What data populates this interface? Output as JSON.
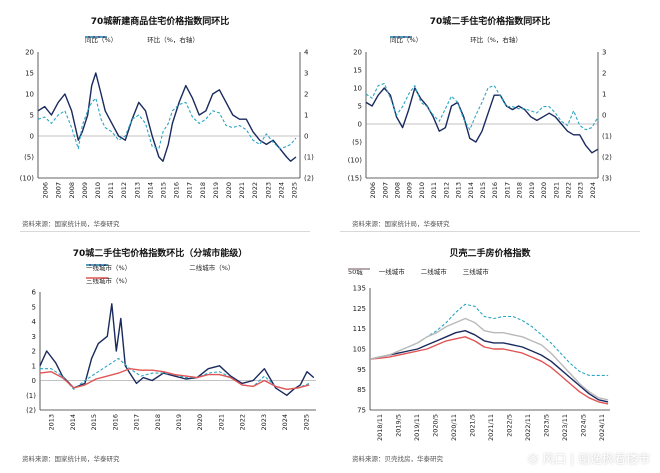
{
  "colors": {
    "navy": "#1a2a5e",
    "teal": "#2aa5c4",
    "red": "#e05555",
    "grey": "#9aa1a8",
    "zero": "#7a7a7a"
  },
  "chart_data": [
    {
      "type": "line",
      "title": "70城新建商品住宅价格指数同环比",
      "source": "资料来源：国家统计局，华泰研究",
      "x_labels": [
        "2006",
        "2007",
        "2008",
        "2009",
        "2010",
        "2011",
        "2012",
        "2013",
        "2014",
        "2015",
        "2016",
        "2017",
        "2018",
        "2019",
        "2020",
        "2021",
        "2022",
        "2023",
        "2024",
        "2025"
      ],
      "x_range": [
        2006,
        2025.5
      ],
      "y_left": {
        "range": [
          -10,
          20
        ],
        "ticks": [
          "20",
          "15",
          "10",
          "5",
          "0",
          "(5)",
          "(10)"
        ]
      },
      "y_right": {
        "range": [
          -2,
          4
        ],
        "ticks": [
          "4",
          "3",
          "2",
          "1",
          "0",
          "(1)",
          "(2)"
        ]
      },
      "series": [
        {
          "name": "同比（%）",
          "axis": "left",
          "style": "solid",
          "color": "#1a2a5e",
          "x": [
            2006,
            2006.5,
            2007,
            2007.5,
            2008,
            2008.5,
            2009,
            2009.3,
            2009.7,
            2010,
            2010.3,
            2010.7,
            2011,
            2011.5,
            2012,
            2012.5,
            2013,
            2013.5,
            2014,
            2014.5,
            2015,
            2015.3,
            2015.7,
            2016,
            2016.5,
            2017,
            2017.5,
            2018,
            2018.5,
            2019,
            2019.5,
            2020,
            2020.5,
            2021,
            2021.5,
            2022,
            2022.5,
            2023,
            2023.5,
            2024,
            2024.5,
            2024.8,
            2025.2
          ],
          "y": [
            6,
            7,
            5,
            8,
            10,
            6,
            -1,
            1,
            5,
            12,
            15,
            10,
            6,
            3,
            0,
            -1,
            4,
            8,
            6,
            0,
            -5,
            -6,
            -2,
            3,
            8,
            12,
            9,
            5,
            6,
            10,
            11,
            8,
            5,
            4,
            4,
            1,
            -1,
            -2,
            -1,
            -3,
            -5,
            -6,
            -5
          ]
        },
        {
          "name": "环比（%，右轴）",
          "axis": "right",
          "style": "dashed",
          "color": "#2aa5c4",
          "x": [
            2006,
            2006.5,
            2007,
            2007.5,
            2008,
            2008.5,
            2009,
            2009.3,
            2009.7,
            2010,
            2010.3,
            2010.7,
            2011,
            2011.5,
            2012,
            2012.5,
            2013,
            2013.5,
            2014,
            2014.5,
            2015,
            2015.3,
            2015.7,
            2016,
            2016.5,
            2017,
            2017.5,
            2018,
            2018.5,
            2019,
            2019.5,
            2020,
            2020.5,
            2021,
            2021.5,
            2022,
            2022.5,
            2023,
            2023.5,
            2024,
            2024.5,
            2024.8,
            2025.2
          ],
          "y": [
            0.8,
            0.9,
            0.6,
            1.0,
            1.2,
            0.4,
            -0.6,
            0.5,
            1.2,
            1.6,
            1.8,
            0.8,
            0.4,
            0.2,
            -0.2,
            0.0,
            0.8,
            1.0,
            0.6,
            -0.5,
            -0.6,
            0.2,
            0.6,
            1.2,
            1.5,
            1.6,
            0.9,
            0.6,
            0.8,
            1.2,
            1.1,
            0.5,
            0.4,
            0.5,
            0.3,
            -0.2,
            -0.4,
            0.1,
            -0.3,
            -0.6,
            -0.5,
            -0.4,
            -0.1
          ]
        }
      ]
    },
    {
      "type": "line",
      "title": "70城二手住宅价格指数同环比",
      "source": "资料来源：国家统计局，华泰研究",
      "x_labels": [
        "2006",
        "2007",
        "2008",
        "2009",
        "2010",
        "2011",
        "2012",
        "2013",
        "2014",
        "2015",
        "2016",
        "2017",
        "2018",
        "2019",
        "2020",
        "2021",
        "2022",
        "2023",
        "2024"
      ],
      "x_range": [
        2006,
        2025
      ],
      "y_left": {
        "range": [
          -15,
          20
        ],
        "ticks": [
          "20",
          "15",
          "10",
          "5",
          "0",
          "(5)",
          "(10)",
          "(15)"
        ]
      },
      "y_right": {
        "range": [
          -3,
          3
        ],
        "ticks": [
          "3",
          "2",
          "1",
          "0",
          "(1)",
          "(2)",
          "(3)"
        ]
      },
      "series": [
        {
          "name": "同比（%）",
          "axis": "left",
          "style": "solid",
          "color": "#1a2a5e",
          "x": [
            2006,
            2006.5,
            2007,
            2007.5,
            2008,
            2008.5,
            2009,
            2009.5,
            2010,
            2010.5,
            2011,
            2011.5,
            2012,
            2012.5,
            2013,
            2013.5,
            2014,
            2014.5,
            2015,
            2015.5,
            2016,
            2016.5,
            2017,
            2017.5,
            2018,
            2018.5,
            2019,
            2019.5,
            2020,
            2020.5,
            2021,
            2021.5,
            2022,
            2022.5,
            2023,
            2023.5,
            2024,
            2024.5,
            2025
          ],
          "y": [
            6,
            5,
            8,
            10,
            8,
            2,
            -1,
            4,
            10,
            7,
            5,
            2,
            -2,
            -1,
            5,
            6,
            2,
            -4,
            -5,
            -2,
            3,
            8,
            8,
            5,
            4,
            5,
            4,
            2,
            1,
            2,
            3,
            2,
            0,
            -2,
            -3,
            -3,
            -6,
            -8,
            -7
          ]
        },
        {
          "name": "环比（%，右轴）",
          "axis": "right",
          "style": "dashed",
          "color": "#2aa5c4",
          "x": [
            2006,
            2006.5,
            2007,
            2007.5,
            2008,
            2008.5,
            2009,
            2009.5,
            2010,
            2010.5,
            2011,
            2011.5,
            2012,
            2012.5,
            2013,
            2013.5,
            2014,
            2014.5,
            2015,
            2015.5,
            2016,
            2016.5,
            2017,
            2017.5,
            2018,
            2018.5,
            2019,
            2019.5,
            2020,
            2020.5,
            2021,
            2021.5,
            2022,
            2022.5,
            2023,
            2023.5,
            2024,
            2024.5,
            2025
          ],
          "y": [
            1.0,
            0.8,
            1.4,
            1.5,
            0.8,
            0.0,
            0.4,
            1.0,
            1.4,
            0.6,
            0.4,
            0.0,
            -0.3,
            0.3,
            0.9,
            0.6,
            -0.2,
            -0.7,
            0.0,
            0.6,
            1.3,
            1.4,
            0.9,
            0.4,
            0.4,
            0.3,
            0.3,
            0.2,
            0.1,
            0.4,
            0.4,
            0.1,
            -0.3,
            -0.5,
            0.2,
            -0.5,
            -0.7,
            -0.6,
            -0.1
          ]
        }
      ]
    },
    {
      "type": "line",
      "title": "70城二手住宅价格指数环比（分城市能级）",
      "source": "资料来源：国家统计局，华泰研究",
      "x_labels": [
        "2013",
        "2014",
        "2015",
        "2016",
        "2017",
        "2018",
        "2019",
        "2020",
        "2021",
        "2022",
        "2023",
        "2024",
        "2025"
      ],
      "x_range": [
        2013,
        2025.3
      ],
      "y_left": {
        "range": [
          -2,
          6
        ],
        "ticks": [
          "6",
          "5",
          "4",
          "3",
          "2",
          "1",
          "0",
          "(1)",
          "(2)"
        ]
      },
      "series": [
        {
          "name": "一线城市（%）",
          "axis": "left",
          "style": "solid",
          "color": "#1a2a5e",
          "x": [
            2013,
            2013.3,
            2013.7,
            2014,
            2014.5,
            2015,
            2015.3,
            2015.6,
            2016,
            2016.2,
            2016.4,
            2016.6,
            2016.8,
            2017,
            2017.3,
            2017.6,
            2018,
            2018.5,
            2019,
            2019.5,
            2020,
            2020.5,
            2021,
            2021.5,
            2022,
            2022.5,
            2023,
            2023.5,
            2024,
            2024.3,
            2024.6,
            2024.9,
            2025.2
          ],
          "y": [
            1.0,
            2.0,
            1.2,
            0.3,
            -0.5,
            -0.2,
            1.5,
            2.5,
            3.0,
            5.2,
            2.0,
            4.2,
            1.0,
            0.5,
            -0.2,
            0.2,
            0.0,
            0.5,
            0.3,
            0.1,
            0.2,
            0.8,
            1.0,
            0.3,
            -0.2,
            0.0,
            0.8,
            -0.5,
            -1.0,
            -0.6,
            -0.3,
            0.6,
            0.2
          ]
        },
        {
          "name": "二线城市（%）",
          "axis": "left",
          "style": "dashed",
          "color": "#2aa5c4",
          "x": [
            2013,
            2013.5,
            2014,
            2014.5,
            2015,
            2015.5,
            2016,
            2016.5,
            2017,
            2017.5,
            2018,
            2018.5,
            2019,
            2019.5,
            2020,
            2020.5,
            2021,
            2021.5,
            2022,
            2022.5,
            2023,
            2023.5,
            2024,
            2024.5,
            2025
          ],
          "y": [
            0.8,
            0.8,
            0.3,
            -0.6,
            0.0,
            0.5,
            1.0,
            1.5,
            0.8,
            0.3,
            0.5,
            0.5,
            0.4,
            0.2,
            0.2,
            0.5,
            0.6,
            0.2,
            -0.3,
            -0.4,
            0.3,
            -0.4,
            -0.6,
            -0.5,
            -0.2
          ]
        },
        {
          "name": "三线城市（%）",
          "axis": "left",
          "style": "solid",
          "color": "#e05555",
          "x": [
            2013,
            2013.5,
            2014,
            2014.5,
            2015,
            2015.5,
            2016,
            2016.5,
            2017,
            2017.5,
            2018,
            2018.5,
            2019,
            2019.5,
            2020,
            2020.5,
            2021,
            2021.5,
            2022,
            2022.5,
            2023,
            2023.5,
            2024,
            2024.5,
            2025
          ],
          "y": [
            0.5,
            0.6,
            0.2,
            -0.5,
            -0.3,
            0.1,
            0.3,
            0.5,
            0.8,
            0.7,
            0.7,
            0.6,
            0.4,
            0.3,
            0.2,
            0.4,
            0.4,
            0.2,
            -0.3,
            -0.4,
            0.0,
            -0.4,
            -0.6,
            -0.5,
            -0.3
          ]
        }
      ]
    },
    {
      "type": "line",
      "title": "贝壳二手房价格指数",
      "source": "资料来源：贝壳找房，华泰研究",
      "x_labels": [
        "2018/11",
        "2019/5",
        "2019/11",
        "2020/5",
        "2020/11",
        "2021/5",
        "2021/11",
        "2022/5",
        "2022/11",
        "2023/5",
        "2023/11",
        "2024/5",
        "2024/11"
      ],
      "x_range": [
        0,
        12.6
      ],
      "y_left": {
        "range": [
          75,
          135
        ],
        "ticks": [
          "135",
          "125",
          "115",
          "105",
          "95",
          "85",
          "75"
        ]
      },
      "series": [
        {
          "name": "50城",
          "style": "solid",
          "color": "#1a2a5e",
          "x": [
            0,
            0.5,
            1,
            1.5,
            2,
            2.5,
            3,
            3.5,
            4,
            4.5,
            5,
            5.5,
            6,
            6.5,
            7,
            7.5,
            8,
            8.5,
            9,
            9.5,
            10,
            10.5,
            11,
            11.5,
            12,
            12.5
          ],
          "y": [
            100,
            101,
            102,
            103,
            104,
            105,
            107,
            109,
            111,
            113,
            114,
            112,
            109,
            108,
            108,
            107,
            106,
            104,
            102,
            99,
            95,
            91,
            87,
            83,
            80,
            79
          ]
        },
        {
          "name": "一线城市",
          "style": "dashed",
          "color": "#2aa5c4",
          "x": [
            0,
            0.5,
            1,
            1.5,
            2,
            2.5,
            3,
            3.5,
            4,
            4.5,
            5,
            5.5,
            6,
            6.5,
            7,
            7.5,
            8,
            8.5,
            9,
            9.5,
            10,
            10.5,
            11,
            11.5,
            12,
            12.5
          ],
          "y": [
            100,
            101,
            102,
            104,
            106,
            108,
            111,
            114,
            118,
            123,
            127,
            126,
            121,
            120,
            121,
            121,
            119,
            116,
            112,
            108,
            103,
            98,
            94,
            92,
            92,
            92
          ]
        },
        {
          "name": "二线城市",
          "style": "solid",
          "color": "#e05555",
          "x": [
            0,
            0.5,
            1,
            1.5,
            2,
            2.5,
            3,
            3.5,
            4,
            4.5,
            5,
            5.5,
            6,
            6.5,
            7,
            7.5,
            8,
            8.5,
            9,
            9.5,
            10,
            10.5,
            11,
            11.5,
            12,
            12.5
          ],
          "y": [
            100,
            100.5,
            101,
            102,
            103,
            104,
            105,
            107,
            109,
            110,
            111,
            109,
            106,
            105,
            105,
            104,
            103,
            101,
            99,
            96,
            92,
            88,
            84,
            81,
            79,
            78
          ]
        },
        {
          "name": "三线城市",
          "style": "solid",
          "color": "#b9b9b9",
          "x": [
            0,
            0.5,
            1,
            1.5,
            2,
            2.5,
            3,
            3.5,
            4,
            4.5,
            5,
            5.5,
            6,
            6.5,
            7,
            7.5,
            8,
            8.5,
            9,
            9.5,
            10,
            10.5,
            11,
            11.5,
            12,
            12.5
          ],
          "y": [
            100,
            101,
            102,
            104,
            106,
            108,
            111,
            113,
            116,
            118,
            120,
            118,
            114,
            113,
            113,
            112,
            111,
            109,
            107,
            103,
            98,
            93,
            88,
            84,
            81,
            80
          ]
        }
      ]
    }
  ],
  "watermark": {
    "icon": "⏣",
    "text": "风口 | 谢逸枫看楼市"
  }
}
